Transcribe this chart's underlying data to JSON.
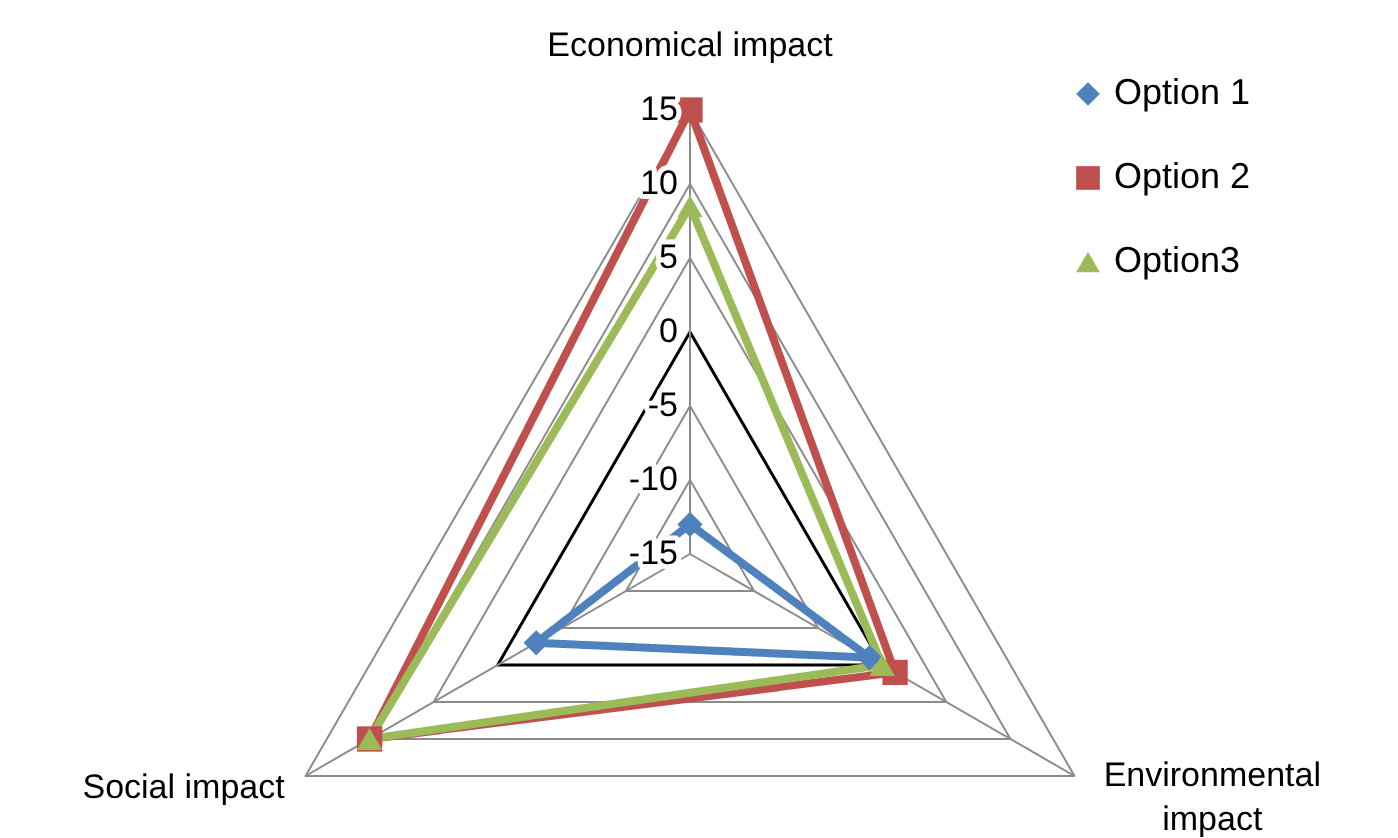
{
  "chart_data": {
    "type": "radar",
    "categories": [
      "Economical impact",
      "Environmental impact",
      "Social impact"
    ],
    "ylim": [
      -15,
      15
    ],
    "yticks": [
      -15,
      -10,
      -5,
      0,
      5,
      10,
      15
    ],
    "grid": true,
    "legend": "top right",
    "series": [
      {
        "name": "Option 1",
        "color": "#4f81bd",
        "marker": "diamond",
        "values": [
          -13,
          -1,
          -3
        ]
      },
      {
        "name": "Option 2",
        "color": "#c0504d",
        "marker": "square",
        "values": [
          15,
          1,
          10
        ]
      },
      {
        "name": "Option3",
        "color": "#9bbb59",
        "marker": "triangle",
        "values": [
          8.5,
          0,
          10
        ]
      }
    ]
  }
}
